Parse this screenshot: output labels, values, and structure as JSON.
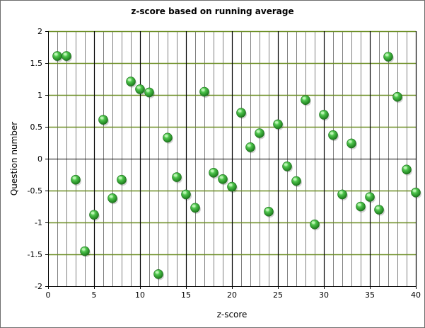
{
  "chart_data": {
    "type": "scatter",
    "title": "z-score based on running average",
    "xlabel": "z-score",
    "ylabel": "Question number",
    "xlim": [
      0,
      40
    ],
    "ylim": [
      -2,
      2
    ],
    "xticks": [
      0,
      5,
      10,
      15,
      20,
      25,
      30,
      35,
      40
    ],
    "yticks": [
      2,
      1.5,
      1,
      0.5,
      0,
      -0.5,
      -1,
      -1.5,
      -2
    ],
    "grid": true,
    "legend": "none",
    "colors": {
      "marker": "#2fa52f",
      "marker_highlight": "#b9f5b0",
      "minor_grid": "#7f7f7f",
      "major_vgrid": "#000000",
      "hgrid": "#6b8e23"
    },
    "series": [
      {
        "x": [
          1,
          2,
          3,
          4,
          5,
          6,
          7,
          8,
          9,
          10,
          11,
          12,
          13,
          14,
          15,
          16,
          17,
          18,
          19,
          20,
          21,
          22,
          23,
          24,
          25,
          26,
          27,
          28,
          29,
          30,
          31,
          32,
          33,
          34,
          35,
          36,
          37,
          38,
          39,
          40
        ],
        "y": [
          1.61,
          1.61,
          -0.33,
          -1.45,
          -0.88,
          0.61,
          -0.62,
          -0.33,
          1.21,
          1.09,
          1.04,
          -1.81,
          0.33,
          -0.29,
          -0.56,
          -0.77,
          1.05,
          -0.22,
          -0.32,
          -0.44,
          0.72,
          0.18,
          0.4,
          -0.83,
          0.54,
          -0.12,
          -0.35,
          0.92,
          -1.03,
          0.69,
          0.37,
          -0.56,
          0.24,
          -0.75,
          -0.6,
          -0.8,
          1.6,
          0.97,
          -0.17,
          -0.53
        ]
      }
    ]
  }
}
